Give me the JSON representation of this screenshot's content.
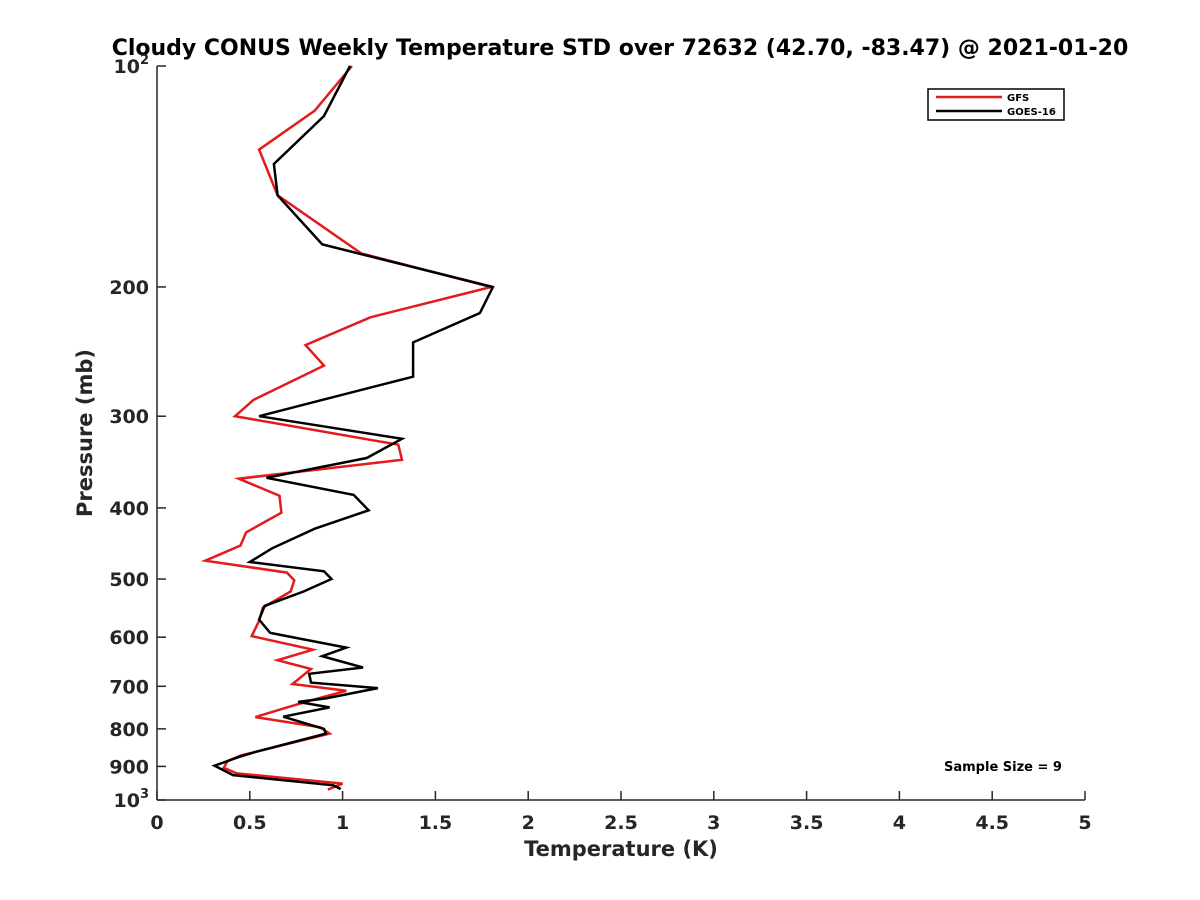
{
  "chart_data": {
    "type": "line",
    "title": "Cloudy CONUS Weekly Temperature STD over 72632 (42.70, -83.47) @ 2021-01-20",
    "xlabel": "Temperature (K)",
    "ylabel": "Pressure (mb)",
    "xlim": [
      0,
      5
    ],
    "ylim": [
      100,
      1000
    ],
    "y_scale": "log",
    "y_reversed": true,
    "grid": false,
    "legend_position": "top-right",
    "x_ticks": [
      {
        "value": 0,
        "label": "0"
      },
      {
        "value": 0.5,
        "label": "0.5"
      },
      {
        "value": 1,
        "label": "1"
      },
      {
        "value": 1.5,
        "label": "1.5"
      },
      {
        "value": 2,
        "label": "2"
      },
      {
        "value": 2.5,
        "label": "2.5"
      },
      {
        "value": 3,
        "label": "3"
      },
      {
        "value": 3.5,
        "label": "3.5"
      },
      {
        "value": 4,
        "label": "4"
      },
      {
        "value": 4.5,
        "label": "4.5"
      },
      {
        "value": 5,
        "label": "5"
      }
    ],
    "y_ticks": [
      {
        "value": 100,
        "label": "10",
        "exponent": "2"
      },
      {
        "value": 200,
        "label": "200",
        "exponent": ""
      },
      {
        "value": 300,
        "label": "300",
        "exponent": ""
      },
      {
        "value": 400,
        "label": "400",
        "exponent": ""
      },
      {
        "value": 500,
        "label": "500",
        "exponent": ""
      },
      {
        "value": 600,
        "label": "600",
        "exponent": ""
      },
      {
        "value": 700,
        "label": "700",
        "exponent": ""
      },
      {
        "value": 800,
        "label": "800",
        "exponent": ""
      },
      {
        "value": 900,
        "label": "900",
        "exponent": ""
      },
      {
        "value": 1000,
        "label": "10",
        "exponent": "3"
      }
    ],
    "annotation": "Sample Size = 9",
    "series": [
      {
        "name": "GFS",
        "color": "#e41a1c",
        "points": [
          [
            1.05,
            100
          ],
          [
            0.85,
            115
          ],
          [
            0.55,
            130
          ],
          [
            0.65,
            150
          ],
          [
            1.1,
            180
          ],
          [
            1.8,
            200
          ],
          [
            1.15,
            220
          ],
          [
            0.8,
            240
          ],
          [
            0.9,
            256
          ],
          [
            0.52,
            285
          ],
          [
            0.42,
            300
          ],
          [
            1.3,
            328
          ],
          [
            1.32,
            344
          ],
          [
            0.44,
            365
          ],
          [
            0.66,
            385
          ],
          [
            0.67,
            406
          ],
          [
            0.48,
            432
          ],
          [
            0.45,
            450
          ],
          [
            0.26,
            472
          ],
          [
            0.7,
            490
          ],
          [
            0.74,
            502
          ],
          [
            0.72,
            520
          ],
          [
            0.57,
            547
          ],
          [
            0.55,
            570
          ],
          [
            0.51,
            598
          ],
          [
            0.84,
            624
          ],
          [
            0.65,
            645
          ],
          [
            0.83,
            663
          ],
          [
            0.73,
            695
          ],
          [
            1.02,
            710
          ],
          [
            0.86,
            728
          ],
          [
            0.7,
            748
          ],
          [
            0.53,
            771
          ],
          [
            0.88,
            796
          ],
          [
            0.93,
            812
          ],
          [
            0.45,
            870
          ],
          [
            0.38,
            885
          ],
          [
            0.36,
            904
          ],
          [
            0.43,
            920
          ],
          [
            1.0,
            950
          ],
          [
            0.92,
            968
          ]
        ]
      },
      {
        "name": "GOES-16",
        "color": "#000000",
        "points": [
          [
            1.04,
            100
          ],
          [
            0.9,
            117
          ],
          [
            0.63,
            136
          ],
          [
            0.65,
            150
          ],
          [
            0.89,
            175
          ],
          [
            1.81,
            200
          ],
          [
            1.74,
            217
          ],
          [
            1.38,
            238
          ],
          [
            1.38,
            265
          ],
          [
            0.89,
            285
          ],
          [
            0.55,
            300
          ],
          [
            1.32,
            322
          ],
          [
            1.13,
            342
          ],
          [
            0.59,
            364
          ],
          [
            1.06,
            384
          ],
          [
            1.14,
            403
          ],
          [
            0.85,
            427
          ],
          [
            0.62,
            454
          ],
          [
            0.5,
            474
          ],
          [
            0.9,
            488
          ],
          [
            0.94,
            500
          ],
          [
            0.79,
            520
          ],
          [
            0.58,
            544
          ],
          [
            0.55,
            568
          ],
          [
            0.61,
            592
          ],
          [
            1.02,
            620
          ],
          [
            0.89,
            637
          ],
          [
            1.11,
            660
          ],
          [
            0.82,
            673
          ],
          [
            0.83,
            692
          ],
          [
            1.19,
            704
          ],
          [
            0.91,
            727
          ],
          [
            0.76,
            735
          ],
          [
            0.93,
            748
          ],
          [
            0.68,
            770
          ],
          [
            0.9,
            800
          ],
          [
            0.91,
            812
          ],
          [
            0.53,
            860
          ],
          [
            0.44,
            874
          ],
          [
            0.31,
            898
          ],
          [
            0.41,
            925
          ],
          [
            0.95,
            955
          ],
          [
            0.99,
            966
          ]
        ]
      }
    ]
  }
}
